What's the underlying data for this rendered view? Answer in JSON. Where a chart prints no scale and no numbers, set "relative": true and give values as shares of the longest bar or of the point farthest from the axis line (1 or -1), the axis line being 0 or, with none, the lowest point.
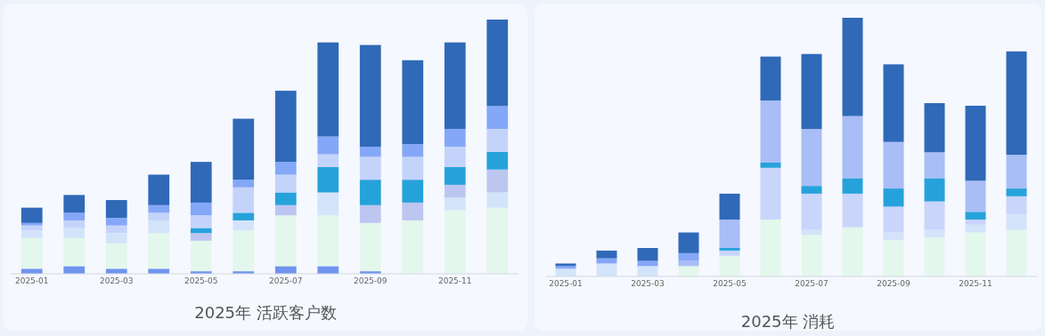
{
  "chart_data": [
    {
      "type": "bar",
      "title": "2025年 活跃客户数",
      "stacked": true,
      "relative": true,
      "categories": [
        "2025-01",
        null,
        "2025-03",
        null,
        "2025-05",
        null,
        "2025-07",
        null,
        "2025-09",
        null,
        "2025-11",
        null
      ],
      "series": [
        {
          "color": "#6f93ee",
          "values": [
            0.02,
            0.03,
            0.02,
            0.02,
            0.01,
            0.01,
            0.03,
            0.03,
            0.01,
            0,
            0,
            0
          ]
        },
        {
          "color": "#e4f7ec",
          "values": [
            0.12,
            0.11,
            0.1,
            0.14,
            0.12,
            0.16,
            0.2,
            0.2,
            0.19,
            0.21,
            0.25,
            0.26
          ]
        },
        {
          "color": "#d3e4fa",
          "values": [
            0.03,
            0.04,
            0.04,
            0.05,
            0,
            0.04,
            0,
            0.09,
            0,
            0,
            0.05,
            0.06
          ]
        },
        {
          "color": "#bcc6f0",
          "values": [
            0,
            0,
            0,
            0,
            0.03,
            0,
            0.04,
            0,
            0.07,
            0.07,
            0.05,
            0.09
          ]
        },
        {
          "color": "#26a2db",
          "values": [
            0,
            0,
            0,
            0,
            0.02,
            0.03,
            0.05,
            0.1,
            0.1,
            0.09,
            0.07,
            0.07
          ]
        },
        {
          "color": "#c4d3fa",
          "values": [
            0.02,
            0.03,
            0.03,
            0.03,
            0.05,
            0.1,
            0.07,
            0.05,
            0.09,
            0.09,
            0.08,
            0.09
          ]
        },
        {
          "color": "#85a7f7",
          "values": [
            0.01,
            0.03,
            0.03,
            0.03,
            0.05,
            0.03,
            0.05,
            0.07,
            0.04,
            0.05,
            0.07,
            0.09
          ]
        },
        {
          "color": "#2f69b8",
          "values": [
            0.06,
            0.07,
            0.07,
            0.12,
            0.16,
            0.24,
            0.28,
            0.37,
            0.4,
            0.33,
            0.34,
            0.34
          ]
        }
      ]
    },
    {
      "type": "bar",
      "title": "2025年 消耗",
      "stacked": true,
      "relative": true,
      "categories": [
        "2025-01",
        null,
        "2025-03",
        null,
        "2025-05",
        null,
        "2025-07",
        null,
        "2025-09",
        null,
        "2025-11",
        null
      ],
      "series": [
        {
          "color": "#e4f7ec",
          "values": [
            0,
            0,
            0,
            0.04,
            0.08,
            0.22,
            0.16,
            0.19,
            0.14,
            0.15,
            0.17,
            0.18
          ]
        },
        {
          "color": "#d3e4fa",
          "values": [
            0.03,
            0.05,
            0.04,
            0,
            0,
            0,
            0.02,
            0,
            0.03,
            0.03,
            0.03,
            0.06
          ]
        },
        {
          "color": "#c9d5fb",
          "values": [
            0,
            0,
            0,
            0,
            0.02,
            0.2,
            0.14,
            0.13,
            0.1,
            0.11,
            0.02,
            0.07
          ]
        },
        {
          "color": "#26a2db",
          "values": [
            0,
            0,
            0,
            0,
            0.01,
            0.02,
            0.03,
            0.06,
            0.07,
            0.09,
            0.03,
            0.03
          ]
        },
        {
          "color": "#a9bdf6",
          "values": [
            0,
            0,
            0,
            0.02,
            0.11,
            0.24,
            0.22,
            0.24,
            0.18,
            0.1,
            0.12,
            0.13
          ]
        },
        {
          "color": "#85a7f7",
          "values": [
            0.01,
            0.02,
            0.02,
            0.03,
            0,
            0,
            0,
            0,
            0,
            0,
            0,
            0
          ]
        },
        {
          "color": "#2f69b8",
          "values": [
            0.01,
            0.03,
            0.05,
            0.08,
            0.1,
            0.17,
            0.29,
            0.38,
            0.3,
            0.19,
            0.29,
            0.4
          ]
        }
      ]
    }
  ]
}
